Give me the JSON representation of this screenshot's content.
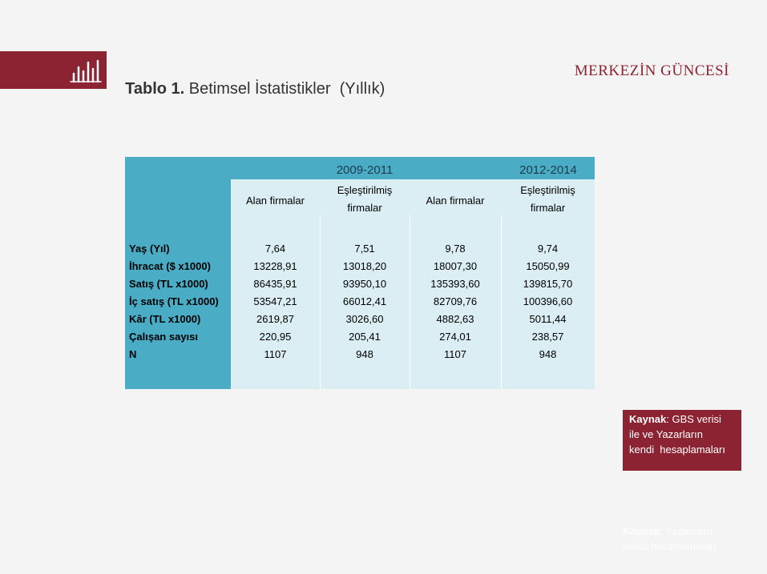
{
  "header": {
    "title_bold": "Tablo 1.",
    "title": "Betimsel İstatistikler  (Yıllık)",
    "brand": "MERKEZİN GÜNCESİ"
  },
  "table": {
    "periods": [
      "2009-2011",
      "2012-2014"
    ],
    "subheaders": [
      "Alan firmalar",
      "Eşleştirilmiş firmalar",
      "Alan firmalar",
      "Eşleştirilmiş firmalar"
    ],
    "rows": [
      {
        "label": "Yaş (Yıl)",
        "values": [
          "7,64",
          "7,51",
          "9,78",
          "9,74"
        ]
      },
      {
        "label": "İhracat ($ x1000)",
        "values": [
          "13228,91",
          "13018,20",
          "18007,30",
          "15050,99"
        ]
      },
      {
        "label": "Satış (TL x1000)",
        "values": [
          "86435,91",
          "93950,10",
          "135393,60",
          "139815,70"
        ]
      },
      {
        "label": "İç satış (TL x1000)",
        "values": [
          "53547,21",
          "66012,41",
          "82709,76",
          "100396,60"
        ]
      },
      {
        "label": "Kâr (TL x1000)",
        "values": [
          "2619,87",
          "3026,60",
          "4882,63",
          "5011,44"
        ]
      },
      {
        "label": "Çalışan sayısı",
        "values": [
          "220,95",
          "205,41",
          "274,01",
          "238,57"
        ]
      },
      {
        "label": "N",
        "values": [
          "1107",
          "948",
          "1107",
          "948"
        ]
      }
    ]
  },
  "source": {
    "label": "Kaynak",
    "lines": [
      ": GBS verisi",
      "ile ve Yazarların",
      "kendi  hesaplamaları"
    ]
  },
  "footnote": {
    "label": "Kaynak",
    "text": ": Yazarların kendi hesaplamaları"
  }
}
